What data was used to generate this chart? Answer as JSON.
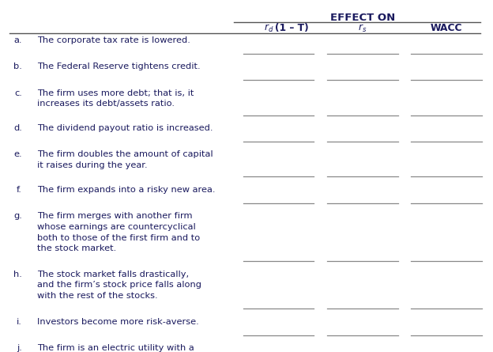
{
  "title": "EFFECT ON",
  "col_header_1": "r_d(1 – T)",
  "col_header_2": "r_s",
  "col_header_3": "WACC",
  "bg_color": "#ffffff",
  "text_color": "#1a1a5e",
  "line_color": "#888888",
  "header_line_color": "#555555",
  "font_size": 8.2,
  "header_font_size": 8.8,
  "title_font_size": 9.5,
  "rows": [
    {
      "label_a": "a.",
      "label_b": "The corporate tax rate is lowered.",
      "nlines": 1
    },
    {
      "label_a": "b.",
      "label_b": "The Federal Reserve tightens credit.",
      "nlines": 1
    },
    {
      "label_a": "c.",
      "label_b": "The firm uses more debt; that is, it\nincreases its debt/assets ratio.",
      "nlines": 2
    },
    {
      "label_a": "d.",
      "label_b": "The dividend payout ratio is increased.",
      "nlines": 1
    },
    {
      "label_a": "e.",
      "label_b": "The firm doubles the amount of capital\nit raises during the year.",
      "nlines": 2
    },
    {
      "label_a": "f.",
      "label_b": "The firm expands into a risky new area.",
      "nlines": 1
    },
    {
      "label_a": "g.",
      "label_b": "The firm merges with another firm\nwhose earnings are countercyclical\nboth to those of the first firm and to\nthe stock market.",
      "nlines": 4
    },
    {
      "label_a": "h.",
      "label_b": "The stock market falls drastically,\nand the firm’s stock price falls along\nwith the rest of the stocks.",
      "nlines": 3
    },
    {
      "label_a": "i.",
      "label_b": "Investors become more risk-averse.",
      "nlines": 1
    },
    {
      "label_a": "j.",
      "label_b": "The firm is an electric utility with a\nlarge investment in nuclear plants.\nSeveral states are considering a ban on\nnuclear power generation.",
      "nlines": 4
    }
  ]
}
